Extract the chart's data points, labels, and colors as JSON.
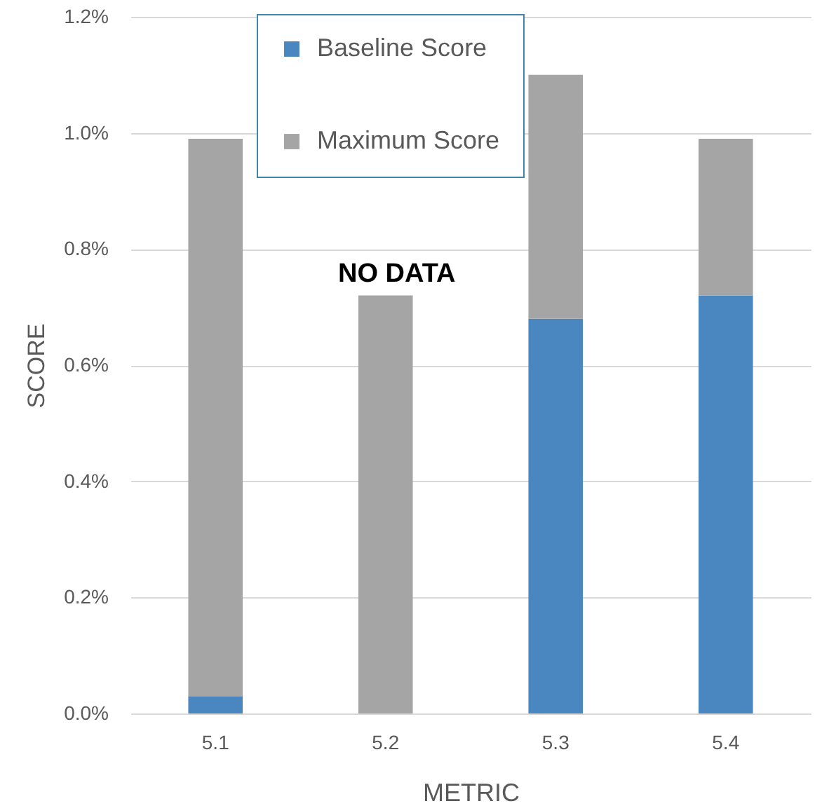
{
  "chart_data": {
    "type": "bar",
    "xlabel": "METRIC",
    "ylabel": "SCORE",
    "categories": [
      "5.1",
      "5.2",
      "5.3",
      "5.4"
    ],
    "series": [
      {
        "name": "Baseline Score",
        "color": "#4a86bf",
        "values": [
          0.03,
          null,
          0.68,
          0.72
        ]
      },
      {
        "name": "Maximum Score",
        "color": "#a5a5a5",
        "values": [
          0.96,
          0.72,
          0.42,
          0.27
        ]
      }
    ],
    "stacked": true,
    "ylim": [
      0,
      1.2
    ],
    "yticks": [
      {
        "value": 0,
        "label": "0.0%"
      },
      {
        "value": 0.2,
        "label": "0.2%"
      },
      {
        "value": 0.4,
        "label": "0.4%"
      },
      {
        "value": 0.6,
        "label": "0.6%"
      },
      {
        "value": 0.8,
        "label": "0.8%"
      },
      {
        "value": 1,
        "label": "1.0%"
      },
      {
        "value": 1.2,
        "label": "1.2%"
      }
    ],
    "grid": "y",
    "legend": "top",
    "annotations": [
      "NO DATA"
    ]
  }
}
